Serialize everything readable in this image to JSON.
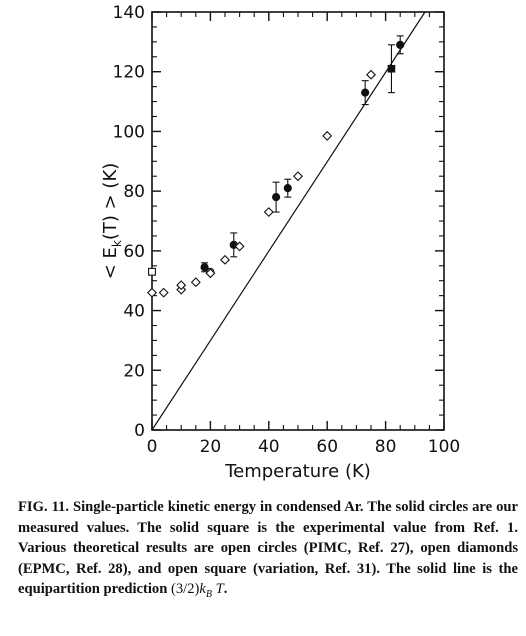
{
  "chart_data": {
    "type": "scatter",
    "title": "",
    "xlabel": "Temperature (K)",
    "ylabel_parts": {
      "prefix": "< E",
      "subscript": "k",
      "suffix": "(T) > (K)"
    },
    "xlim": [
      0,
      100
    ],
    "ylim": [
      0,
      140
    ],
    "x_ticks": [
      "0",
      "20",
      "40",
      "60",
      "80",
      "100"
    ],
    "y_ticks": [
      "0",
      "20",
      "40",
      "60",
      "80",
      "100",
      "120",
      "140"
    ],
    "grid": false,
    "legend": "none",
    "series": [
      {
        "marker": "filled-circle",
        "points": [
          {
            "x": 18,
            "y": 54.5,
            "err": 1.5
          },
          {
            "x": 28,
            "y": 62,
            "err": 4
          },
          {
            "x": 42.5,
            "y": 78,
            "err": 5
          },
          {
            "x": 46.5,
            "y": 81,
            "err": 3
          },
          {
            "x": 73,
            "y": 113,
            "err": 4
          },
          {
            "x": 85,
            "y": 129,
            "err": 3
          }
        ]
      },
      {
        "marker": "filled-square",
        "points": [
          {
            "x": 82,
            "y": 121,
            "err": 8
          }
        ]
      },
      {
        "marker": "open-circle",
        "points": [
          {
            "x": 20,
            "y": 53
          }
        ]
      },
      {
        "marker": "open-diamond",
        "points": [
          {
            "x": 0,
            "y": 46
          },
          {
            "x": 4,
            "y": 46
          },
          {
            "x": 10,
            "y": 47
          },
          {
            "x": 10,
            "y": 48.5
          },
          {
            "x": 15,
            "y": 49.5
          },
          {
            "x": 20,
            "y": 52.5
          },
          {
            "x": 25,
            "y": 57
          },
          {
            "x": 30,
            "y": 61.5
          },
          {
            "x": 40,
            "y": 73
          },
          {
            "x": 50,
            "y": 85
          },
          {
            "x": 60,
            "y": 98.5
          },
          {
            "x": 75,
            "y": 119
          }
        ]
      },
      {
        "marker": "open-square",
        "points": [
          {
            "x": 0,
            "y": 53
          }
        ]
      },
      {
        "type": "line",
        "style": "solid",
        "points": [
          {
            "x": 0,
            "y": 0
          },
          {
            "x": 93.5,
            "y": 140
          }
        ]
      }
    ]
  },
  "caption": {
    "label": "FIG. 11.",
    "text_before": " Single-particle kinetic energy in condensed Ar. The solid circles are our measured values. The solid square is the experimental value from Ref. 1. Various theoretical results are open circles (PIMC, Ref. 27), open diamonds (EPMC, Ref. 28), and open square (variation, Ref. 31). The solid line is the equipartition prediction ",
    "formula_fraction": "(3/2)",
    "formula_k": "k",
    "formula_sub": "B",
    "formula_T": "T",
    "text_after": "."
  }
}
